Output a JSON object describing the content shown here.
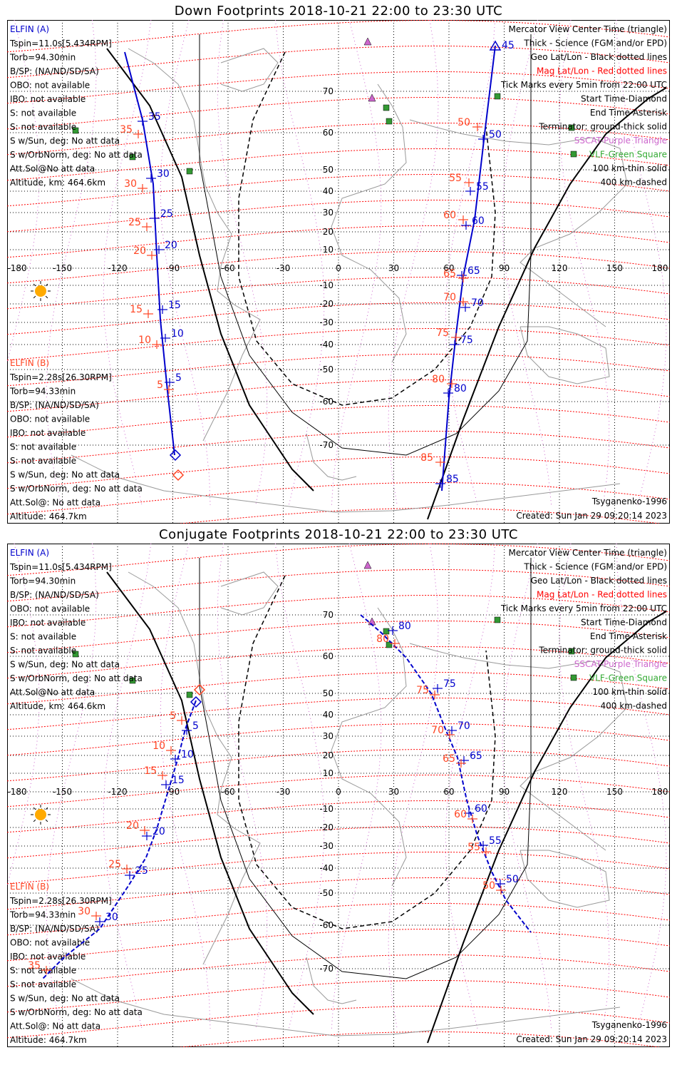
{
  "panels": [
    {
      "title": "Down Footprints 2018-10-21 22:00 to 23:30 UTC",
      "elfin_a": {
        "name": "ELFIN (A)",
        "lines": [
          "Tspin=11.0s[5.434RPM]",
          "Torb=94.30min",
          "B/SP: (NA/ND/SD/SA)",
          "OBO: not available",
          "IBO: not available",
          "S: not available",
          "S: not available",
          "S w/Sun, deg: No att data",
          "S w/OrbNorm, deg: No att data",
          "Att.Sol@No att data",
          "Altitude, km: 464.6km"
        ]
      },
      "elfin_b": {
        "name": "ELFIN (B)",
        "lines": [
          "Tspin=2.28s[26.30RPM]",
          "Torb=94.33min",
          "B/SP: (NA/ND/SD/SA)",
          "OBO: not available",
          "IBO: not available",
          "S: not available",
          "S: not available",
          "S w/Sun, deg: No att data",
          "S w/OrbNorm, deg: No att data",
          "Att.Sol@: No att data",
          "Altitude: 464.7km"
        ]
      },
      "legend": [
        {
          "text": "Mercator View Center Time (triangle)",
          "color": "#000000"
        },
        {
          "text": "Thick - Science (FGM and/or EPD)",
          "color": "#000000"
        },
        {
          "text": "Geo Lat/Lon - Black dotted lines",
          "color": "#000000"
        },
        {
          "text": "Mag Lat/Lon - Red dotted lines",
          "color": "#ff0000"
        },
        {
          "text": "Tick Marks every 5min from 22:00 UTC",
          "color": "#000000"
        },
        {
          "text": "Start Time-Diamond",
          "color": "#000000"
        },
        {
          "text": "End Time-Asterisk",
          "color": "#000000"
        },
        {
          "text": "Terminator: ground-thick solid",
          "color": "#000000"
        },
        {
          "text": "SSCAT-Purple Triangle",
          "color": "#cc66cc"
        },
        {
          "text": "VLF-Green Square",
          "color": "#33aa33"
        },
        {
          "text": "100 km-thin solid",
          "color": "#000000"
        },
        {
          "text": "400 km-dashed",
          "color": "#000000"
        }
      ],
      "model": "Tsyganenko-1996",
      "created": "Created: Sun Jan 29 09:20:14 2023"
    },
    {
      "title": "Conjugate Footprints 2018-10-21 22:00 to 23:30 UTC",
      "elfin_a": {
        "name": "ELFIN (A)",
        "lines": [
          "Tspin=11.0s[5.434RPM]",
          "Torb=94.30min",
          "B/SP: (NA/ND/SD/SA)",
          "OBO: not available",
          "IBO: not available",
          "S: not available",
          "S: not available",
          "S w/Sun, deg: No att data",
          "S w/OrbNorm, deg: No att data",
          "Att.Sol@No att data",
          "Altitude, km: 464.6km"
        ]
      },
      "elfin_b": {
        "name": "ELFIN (B)",
        "lines": [
          "Tspin=2.28s[26.30RPM]",
          "Torb=94.33min",
          "B/SP: (NA/ND/SD/SA)",
          "OBO: not available",
          "IBO: not available",
          "S: not available",
          "S: not available",
          "S w/Sun, deg: No att data",
          "S w/OrbNorm, deg: No att data",
          "Att.Sol@: No att data",
          "Altitude: 464.7km"
        ]
      },
      "legend": [
        {
          "text": "Mercator View Center Time (triangle)",
          "color": "#000000"
        },
        {
          "text": "Thick - Science (FGM and/or EPD)",
          "color": "#000000"
        },
        {
          "text": "Geo Lat/Lon - Black dotted lines",
          "color": "#000000"
        },
        {
          "text": "Mag Lat/Lon - Red dotted lines",
          "color": "#ff0000"
        },
        {
          "text": "Tick Marks every 5min from 22:00 UTC",
          "color": "#000000"
        },
        {
          "text": "Start Time-Diamond",
          "color": "#000000"
        },
        {
          "text": "End Time-Asterisk",
          "color": "#000000"
        },
        {
          "text": "Terminator: ground-thick solid",
          "color": "#000000"
        },
        {
          "text": "SSCAT-Purple Triangle",
          "color": "#cc66cc"
        },
        {
          "text": "VLF-Green Square",
          "color": "#33aa33"
        },
        {
          "text": "100 km-thin solid",
          "color": "#000000"
        },
        {
          "text": "400 km-dashed",
          "color": "#000000"
        }
      ],
      "model": "Tsyganenko-1996",
      "created": "Created: Sun Jan 29 09:20:14 2023"
    }
  ],
  "axes": {
    "lon_ticks": [
      -180,
      -150,
      -120,
      -90,
      -60,
      -30,
      0,
      30,
      60,
      90,
      120,
      150,
      180
    ],
    "lon_tick_labels": [
      "-180",
      "-150",
      "-120",
      "-90",
      "-60",
      "-30",
      "0",
      "30",
      "60",
      "90",
      "120",
      "150",
      "180"
    ],
    "lat_labels": [
      "70",
      "60",
      "50",
      "40",
      "30",
      "20",
      "10",
      "0",
      "-10",
      "-20",
      "-30",
      "-40",
      "-50",
      "-60",
      "-70"
    ]
  },
  "colors": {
    "elfin_a": "#0000cc",
    "elfin_b": "#ff4422",
    "mag_grid": "#ff0000",
    "sscat": "#cc66cc",
    "vlf": "#339933",
    "sun": "#ffaa00"
  },
  "tracks": {
    "down_a_left_ticks": [
      "35",
      "30",
      "25",
      "20",
      "15",
      "10",
      "5"
    ],
    "down_b_left_ticks": [
      "35",
      "30",
      "25",
      "20",
      "15",
      "10",
      "5"
    ],
    "down_a_right_ticks": [
      "50",
      "55",
      "60",
      "65",
      "70",
      "75",
      "80",
      "85"
    ],
    "down_b_right_ticks": [
      "50",
      "55",
      "60",
      "65",
      "70",
      "75",
      "80",
      "85"
    ],
    "conj_a_left_ticks": [
      "5",
      "10",
      "15",
      "20",
      "25",
      "30"
    ],
    "conj_b_left_ticks": [
      "5",
      "10",
      "15",
      "20",
      "25",
      "30",
      "35"
    ],
    "conj_a_right_ticks": [
      "80",
      "75",
      "70",
      "65",
      "60",
      "55",
      "50"
    ],
    "conj_b_right_ticks": [
      "80",
      "75",
      "70",
      "65",
      "60",
      "55",
      "50"
    ],
    "end_label_top": "45"
  }
}
